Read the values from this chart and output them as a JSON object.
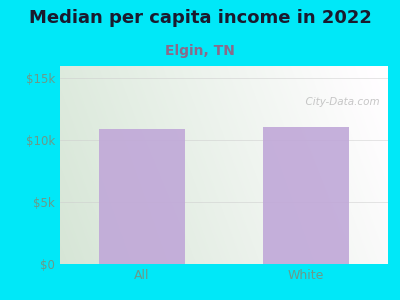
{
  "title": "Median per capita income in 2022",
  "subtitle": "Elgin, TN",
  "categories": [
    "All",
    "White"
  ],
  "values": [
    10900,
    11100
  ],
  "bar_color": "#c0a8d8",
  "ylim": [
    0,
    16000
  ],
  "yticks": [
    0,
    5000,
    10000,
    15000
  ],
  "ytick_labels": [
    "$0",
    "$5k",
    "$10k",
    "$15k"
  ],
  "title_fontsize": 13,
  "subtitle_fontsize": 10,
  "title_color": "#1a1a2e",
  "subtitle_color": "#8a6a8a",
  "tick_color": "#6a9a8a",
  "bg_outer": "#00e8f8",
  "watermark": "  City-Data.com",
  "bg_grad_left": "#d8edd8",
  "bg_grad_right": "#f5f5f5"
}
